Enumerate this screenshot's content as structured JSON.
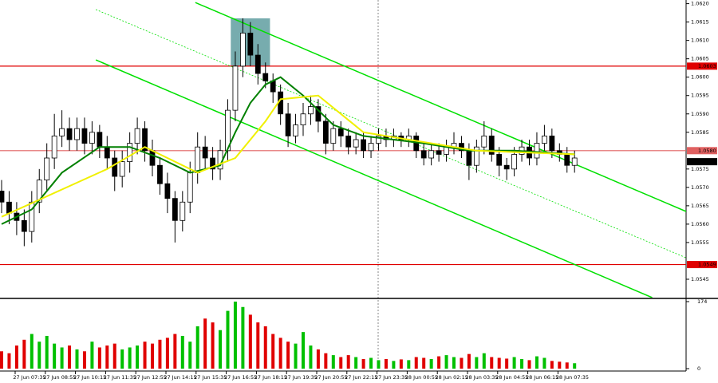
{
  "chart_data": {
    "type": "candlestick",
    "color": "#000000",
    "open": [
      1.0569,
      1.0566,
      1.0563,
      1.0561,
      1.0558,
      1.0566,
      1.0572,
      1.0578,
      1.0584,
      1.0586,
      1.0583,
      1.0586,
      1.0582,
      1.0585,
      1.0581,
      1.0578,
      1.0573,
      1.0577,
      1.0582,
      1.0586,
      1.058,
      1.0576,
      1.0571,
      1.0567,
      1.0561,
      1.0566,
      1.0574,
      1.0581,
      1.0578,
      1.0575,
      1.058,
      1.0591,
      1.0603,
      1.0612,
      1.0606,
      1.0601,
      1.0599,
      1.0596,
      1.059,
      1.0584,
      1.0587,
      1.059,
      1.0592,
      1.0588,
      1.0582,
      1.0586,
      1.0584,
      1.0581,
      1.0583,
      1.058,
      1.0582,
      1.0584,
      1.0583,
      1.0584,
      1.0583,
      1.0584,
      1.058,
      1.0578,
      1.058,
      1.0579,
      1.0581,
      1.0582,
      1.058,
      1.0576,
      1.0581,
      1.0584,
      1.0579,
      1.0576,
      1.0575,
      1.0579,
      1.0581,
      1.0578,
      1.0582,
      1.0584,
      1.058,
      1.0579,
      1.0576
    ],
    "high": [
      1.0572,
      1.0569,
      1.0566,
      1.0564,
      1.0569,
      1.0575,
      1.0582,
      1.059,
      1.0591,
      1.0589,
      1.0589,
      1.0589,
      1.0588,
      1.0587,
      1.0584,
      1.058,
      1.058,
      1.0585,
      1.0589,
      1.0588,
      1.0583,
      1.0578,
      1.0574,
      1.0569,
      1.0569,
      1.0577,
      1.0585,
      1.0584,
      1.0581,
      1.0583,
      1.0594,
      1.0607,
      1.0616,
      1.0615,
      1.0609,
      1.0604,
      1.0601,
      1.0598,
      1.0593,
      1.059,
      1.0593,
      1.0595,
      1.0594,
      1.059,
      1.0588,
      1.0588,
      1.0586,
      1.0585,
      1.0585,
      1.0584,
      1.0586,
      1.0586,
      1.0586,
      1.0585,
      1.0586,
      1.0585,
      1.0582,
      1.0582,
      1.0582,
      1.0583,
      1.0585,
      1.0584,
      1.0582,
      1.0583,
      1.0588,
      1.0586,
      1.0581,
      1.0578,
      1.0581,
      1.0583,
      1.0583,
      1.0585,
      1.0587,
      1.0586,
      1.0582,
      1.0581,
      1.058
    ],
    "low": [
      1.0563,
      1.056,
      1.0557,
      1.0554,
      1.0555,
      1.0563,
      1.0569,
      1.0575,
      1.0581,
      1.058,
      1.058,
      1.0579,
      1.0579,
      1.0578,
      1.0575,
      1.0569,
      1.057,
      1.0574,
      1.0579,
      1.0577,
      1.0573,
      1.0568,
      1.0563,
      1.0555,
      1.0558,
      1.0563,
      1.0571,
      1.0575,
      1.0572,
      1.0572,
      1.0577,
      1.0588,
      1.06,
      1.0603,
      1.0598,
      1.0597,
      1.0593,
      1.0587,
      1.0581,
      1.0582,
      1.0584,
      1.0587,
      1.0585,
      1.0579,
      1.058,
      1.0581,
      1.0579,
      1.0579,
      1.0578,
      1.0578,
      1.058,
      1.0581,
      1.0581,
      1.0581,
      1.0581,
      1.0578,
      1.0576,
      1.0576,
      1.0577,
      1.0577,
      1.0579,
      1.0578,
      1.0572,
      1.0574,
      1.0579,
      1.0577,
      1.0573,
      1.0572,
      1.0573,
      1.0577,
      1.0576,
      1.0576,
      1.058,
      1.0578,
      1.0577,
      1.0574,
      1.0574
    ],
    "close": [
      1.0566,
      1.0563,
      1.0561,
      1.0558,
      1.0566,
      1.0572,
      1.0578,
      1.0584,
      1.0586,
      1.0583,
      1.0586,
      1.0582,
      1.0585,
      1.0581,
      1.0578,
      1.0573,
      1.0577,
      1.0582,
      1.0586,
      1.058,
      1.0576,
      1.0571,
      1.0567,
      1.0561,
      1.0566,
      1.0574,
      1.0581,
      1.0578,
      1.0575,
      1.058,
      1.0591,
      1.0603,
      1.0612,
      1.0606,
      1.0601,
      1.0599,
      1.0596,
      1.059,
      1.0584,
      1.0587,
      1.059,
      1.0592,
      1.0588,
      1.0582,
      1.0586,
      1.0584,
      1.0581,
      1.0583,
      1.058,
      1.0582,
      1.0584,
      1.0583,
      1.0584,
      1.0583,
      1.0584,
      1.058,
      1.0578,
      1.058,
      1.0579,
      1.0581,
      1.0582,
      1.058,
      1.0576,
      1.0581,
      1.0584,
      1.0579,
      1.0576,
      1.0575,
      1.0579,
      1.0581,
      1.0578,
      1.0582,
      1.0584,
      1.058,
      1.0579,
      1.0576,
      1.0578
    ],
    "ylim": [
      1.054,
      1.0621
    ],
    "yticks": [
      {
        "value": 1.062,
        "label": "1.0620"
      },
      {
        "value": 1.0615,
        "label": "1.0615"
      },
      {
        "value": 1.061,
        "label": "1.0610"
      },
      {
        "value": 1.0605,
        "label": "1.0605"
      },
      {
        "value": 1.06,
        "label": "1.0600"
      },
      {
        "value": 1.0595,
        "label": "1.0595"
      },
      {
        "value": 1.059,
        "label": "1.0590"
      },
      {
        "value": 1.0585,
        "label": "1.0585"
      },
      {
        "value": 1.0575,
        "label": "1.0575"
      },
      {
        "value": 1.057,
        "label": "1.0570"
      },
      {
        "value": 1.0565,
        "label": "1.0565"
      },
      {
        "value": 1.056,
        "label": "1.0560"
      },
      {
        "value": 1.0555,
        "label": "1.0555"
      },
      {
        "value": 1.0545,
        "label": "1.0545"
      }
    ],
    "time_labels": [
      "27 Jun 07:35",
      "27 Jun 08:55",
      "27 Jun 10:15",
      "27 Jun 11:35",
      "27 Jun 12:55",
      "27 Jun 14:15",
      "27 Jun 15:35",
      "27 Jun 16:55",
      "27 Jun 18:15",
      "27 Jun 19:35",
      "27 Jun 20:55",
      "27 Jun 22:15",
      "27 Jun 23:35",
      "28 Jun 00:55",
      "28 Jun 02:15",
      "28 Jun 03:35",
      "28 Jun 04:55",
      "28 Jun 06:15",
      "28 Jun 07:35"
    ],
    "moving_averages": [
      {
        "color": "#008000",
        "x": [
          0,
          4,
          8,
          13,
          17,
          21,
          25,
          29,
          31,
          33,
          35,
          37,
          40,
          44,
          48,
          52,
          56,
          62,
          68,
          76
        ],
        "values": [
          1.056,
          1.0564,
          1.0574,
          1.0581,
          1.0581,
          1.0578,
          1.0574,
          1.0576,
          1.0585,
          1.0593,
          1.0598,
          1.06,
          1.0595,
          1.0587,
          1.0584,
          1.0583,
          1.0582,
          1.058,
          1.058,
          1.0579
        ]
      },
      {
        "color": "#f0f000",
        "x": [
          0,
          14,
          19,
          26,
          31,
          35,
          37,
          42,
          48,
          63,
          76
        ],
        "values": [
          1.0562,
          1.0575,
          1.0581,
          1.0574,
          1.0578,
          1.0588,
          1.0594,
          1.0595,
          1.0585,
          1.058,
          1.0579
        ]
      }
    ],
    "channel": [
      {
        "color": "#00e000",
        "dash": false,
        "x": [
          25.7,
          92
        ],
        "values": [
          1.06203,
          1.05624
        ]
      },
      {
        "color": "#00e000",
        "dash": false,
        "x": [
          12.5,
          86.3
        ],
        "values": [
          1.06047,
          1.054
        ]
      },
      {
        "color": "#00e000",
        "dash": true,
        "x": [
          12.5,
          92
        ],
        "values": [
          1.06184,
          1.05498
        ]
      }
    ],
    "highlight": {
      "color": "#5f9ea0",
      "x": [
        30.4,
        35.6
      ],
      "values": [
        1.0616,
        1.0603
      ]
    },
    "levels": [
      {
        "value": 1.0603,
        "label": "1.0603",
        "color": "#e00000"
      },
      {
        "value": 1.058,
        "label": "1.0580",
        "color": "#e06060"
      },
      {
        "value": 1.0549,
        "label": "1.0549",
        "color": "#e00000"
      }
    ],
    "current_price": {
      "value": 1.0577,
      "label": "1.0577"
    },
    "volume": {
      "up_color": "#00c000",
      "down_color": "#e00000",
      "values": [
        45,
        40,
        60,
        75,
        90,
        70,
        85,
        65,
        55,
        60,
        50,
        45,
        70,
        55,
        60,
        65,
        50,
        55,
        60,
        70,
        65,
        75,
        80,
        90,
        85,
        70,
        110,
        130,
        120,
        100,
        150,
        174,
        160,
        140,
        120,
        110,
        90,
        80,
        70,
        65,
        95,
        60,
        50,
        40,
        35,
        30,
        35,
        30,
        25,
        28,
        22,
        25,
        20,
        24,
        22,
        30,
        28,
        25,
        32,
        35,
        30,
        28,
        38,
        30,
        40,
        30,
        28,
        26,
        30,
        25,
        22,
        32,
        28,
        20,
        18,
        16,
        14
      ],
      "ylim": [
        0,
        174
      ],
      "yticks": [
        174,
        0
      ]
    }
  }
}
